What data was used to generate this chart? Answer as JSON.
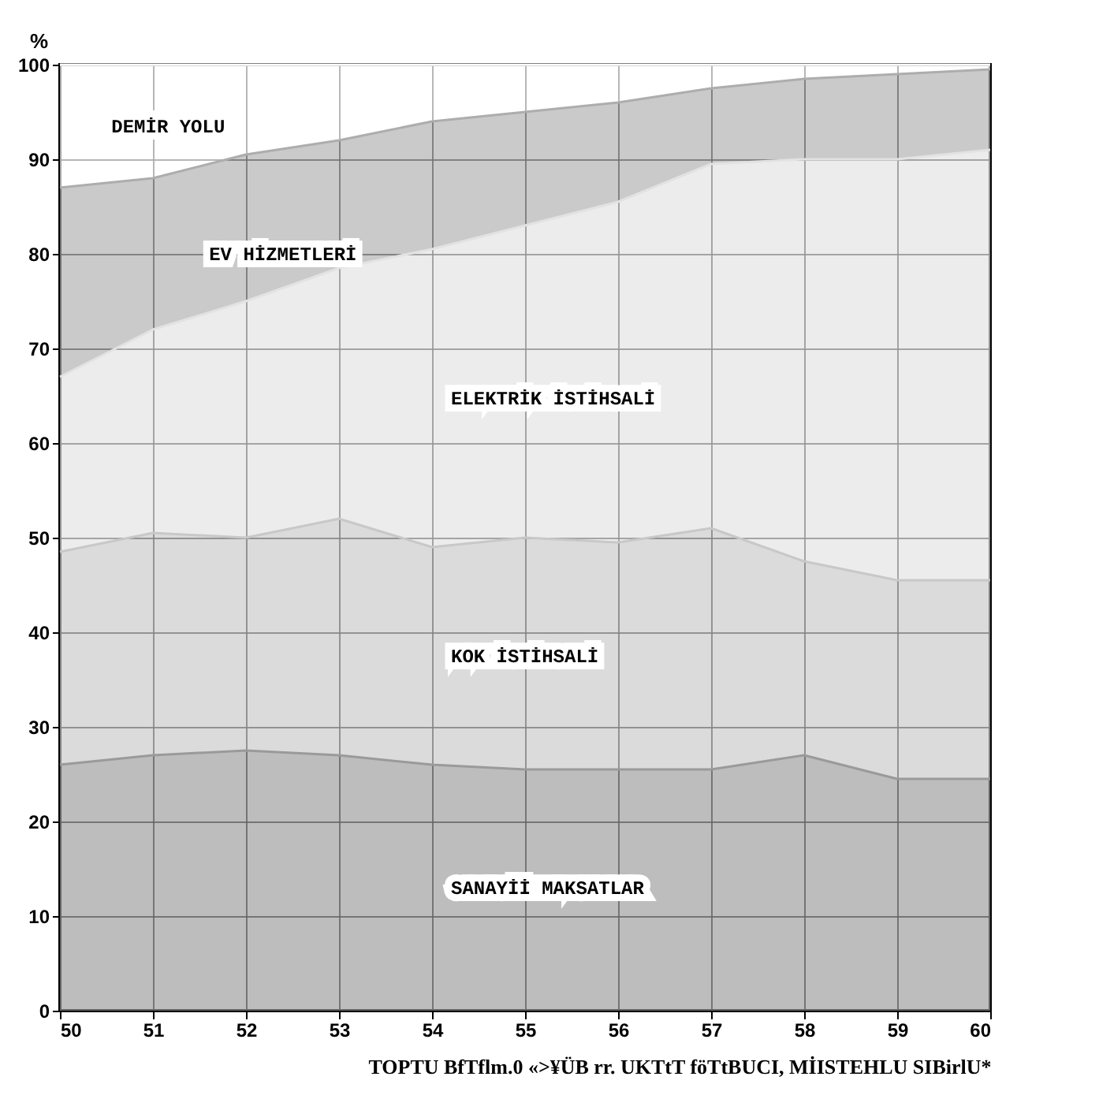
{
  "chart_data": {
    "type": "area",
    "stacked": true,
    "ylabel": "%",
    "x": [
      50,
      51,
      52,
      53,
      54,
      55,
      56,
      57,
      58,
      59,
      60
    ],
    "xlim": [
      50,
      60
    ],
    "xticks": [
      50,
      51,
      52,
      53,
      54,
      55,
      56,
      57,
      58,
      59,
      60
    ],
    "ylim": [
      0,
      100
    ],
    "yticks": [
      0,
      10,
      20,
      30,
      40,
      50,
      60,
      70,
      80,
      90,
      100
    ],
    "grid": true,
    "legend": false,
    "series": [
      {
        "name": "SANAYİİ MAKSATLAR",
        "color": "#9a9a9a",
        "values": [
          26,
          27,
          27.5,
          27,
          26,
          25.5,
          25.5,
          25.5,
          27,
          24.5,
          24.5
        ]
      },
      {
        "name": "KOK İSTİHSALİ",
        "color": "#c8c8c8",
        "values": [
          22.5,
          23.5,
          22.5,
          25,
          23,
          24.5,
          24,
          25.5,
          20.5,
          21,
          21
        ]
      },
      {
        "name": "ELEKTRİK İSTİHSALİ",
        "color": "#e2e2e2",
        "values": [
          18.5,
          21.5,
          25,
          26.5,
          31.5,
          33,
          36,
          38.5,
          42.5,
          44.5,
          45.5
        ]
      },
      {
        "name": "EV HİZMETLERİ",
        "color": "#adadad",
        "values": [
          20,
          16,
          15.5,
          13.5,
          13.5,
          12,
          10.5,
          8,
          8.5,
          9,
          8.5
        ]
      },
      {
        "name": "DEMİR YOLU",
        "color": "#ffffff",
        "values": [
          13,
          12,
          9.5,
          8,
          6,
          5,
          4,
          2.5,
          1.5,
          1,
          0.5
        ]
      }
    ],
    "annotations": [
      "TOPTU BfTflm.0 «>¥ÜB rr. UKTtT föTtBUCI, MİISTEHLU SIBirlU*"
    ]
  }
}
